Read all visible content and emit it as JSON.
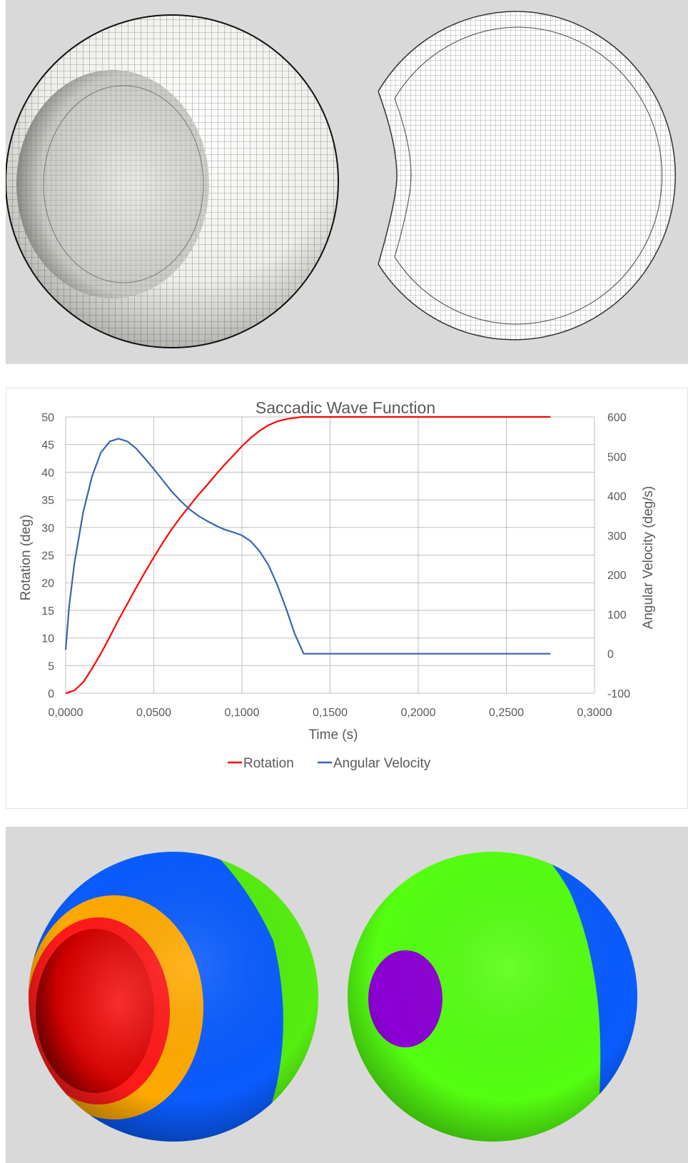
{
  "figure": {
    "top_panel": {
      "left_view": "spherical surface mesh with indentation",
      "right_view": "cross-section mesh"
    },
    "bottom_panel": {
      "colors": {
        "background": "#d9d9d9",
        "red": "#ff1a1a",
        "orange": "#ffaa00",
        "blue": "#0a5cff",
        "green": "#55ff11",
        "purple": "#8c00d4"
      }
    }
  },
  "chart_data": {
    "type": "line",
    "title": "Saccadic Wave Function",
    "xlabel": "Time (s)",
    "ylabel": "Rotation (deg)",
    "y2label": "Angular Velocity (deg/s)",
    "xlim": [
      0,
      0.3
    ],
    "ylim": [
      0,
      50
    ],
    "y2lim": [
      -100,
      600
    ],
    "x_ticks": [
      "0,0000",
      "0,0500",
      "0,1000",
      "0,1500",
      "0,2000",
      "0,2500",
      "0,3000"
    ],
    "y_ticks": [
      "0",
      "5",
      "10",
      "15",
      "20",
      "25",
      "30",
      "35",
      "40",
      "45",
      "50"
    ],
    "y2_ticks": [
      "-100",
      "0",
      "100",
      "200",
      "300",
      "400",
      "500",
      "600"
    ],
    "grid": true,
    "legend_position": "bottom",
    "series": [
      {
        "name": "Rotation",
        "axis": "left",
        "color": "#ff0000",
        "x": [
          0,
          0.005,
          0.01,
          0.015,
          0.02,
          0.025,
          0.03,
          0.035,
          0.04,
          0.045,
          0.05,
          0.055,
          0.06,
          0.065,
          0.07,
          0.075,
          0.08,
          0.085,
          0.09,
          0.095,
          0.1,
          0.105,
          0.11,
          0.115,
          0.12,
          0.125,
          0.13,
          0.134,
          0.137,
          0.14,
          0.16,
          0.2,
          0.25,
          0.275
        ],
        "y": [
          0,
          0.5,
          2,
          4.5,
          7.2,
          10.2,
          13.3,
          16.2,
          19.1,
          21.9,
          24.6,
          27.2,
          29.6,
          31.8,
          33.8,
          35.8,
          37.6,
          39.5,
          41.3,
          43.0,
          44.7,
          46.2,
          47.5,
          48.5,
          49.2,
          49.6,
          49.85,
          50,
          50,
          50,
          50,
          50,
          50,
          50
        ]
      },
      {
        "name": "Angular Velocity",
        "axis": "right",
        "color": "#3a64b0",
        "x": [
          0,
          0.002,
          0.005,
          0.01,
          0.015,
          0.02,
          0.025,
          0.03,
          0.035,
          0.04,
          0.045,
          0.05,
          0.055,
          0.06,
          0.065,
          0.07,
          0.075,
          0.08,
          0.085,
          0.09,
          0.095,
          0.1,
          0.105,
          0.11,
          0.115,
          0.12,
          0.125,
          0.13,
          0.135,
          0.137,
          0.14,
          0.16,
          0.2,
          0.25,
          0.275
        ],
        "y": [
          10,
          120,
          230,
          360,
          450,
          510,
          538,
          545,
          538,
          520,
          495,
          468,
          440,
          412,
          388,
          367,
          350,
          337,
          325,
          315,
          308,
          300,
          285,
          260,
          225,
          175,
          115,
          50,
          0,
          0,
          0,
          0,
          0,
          0,
          0
        ]
      }
    ]
  }
}
